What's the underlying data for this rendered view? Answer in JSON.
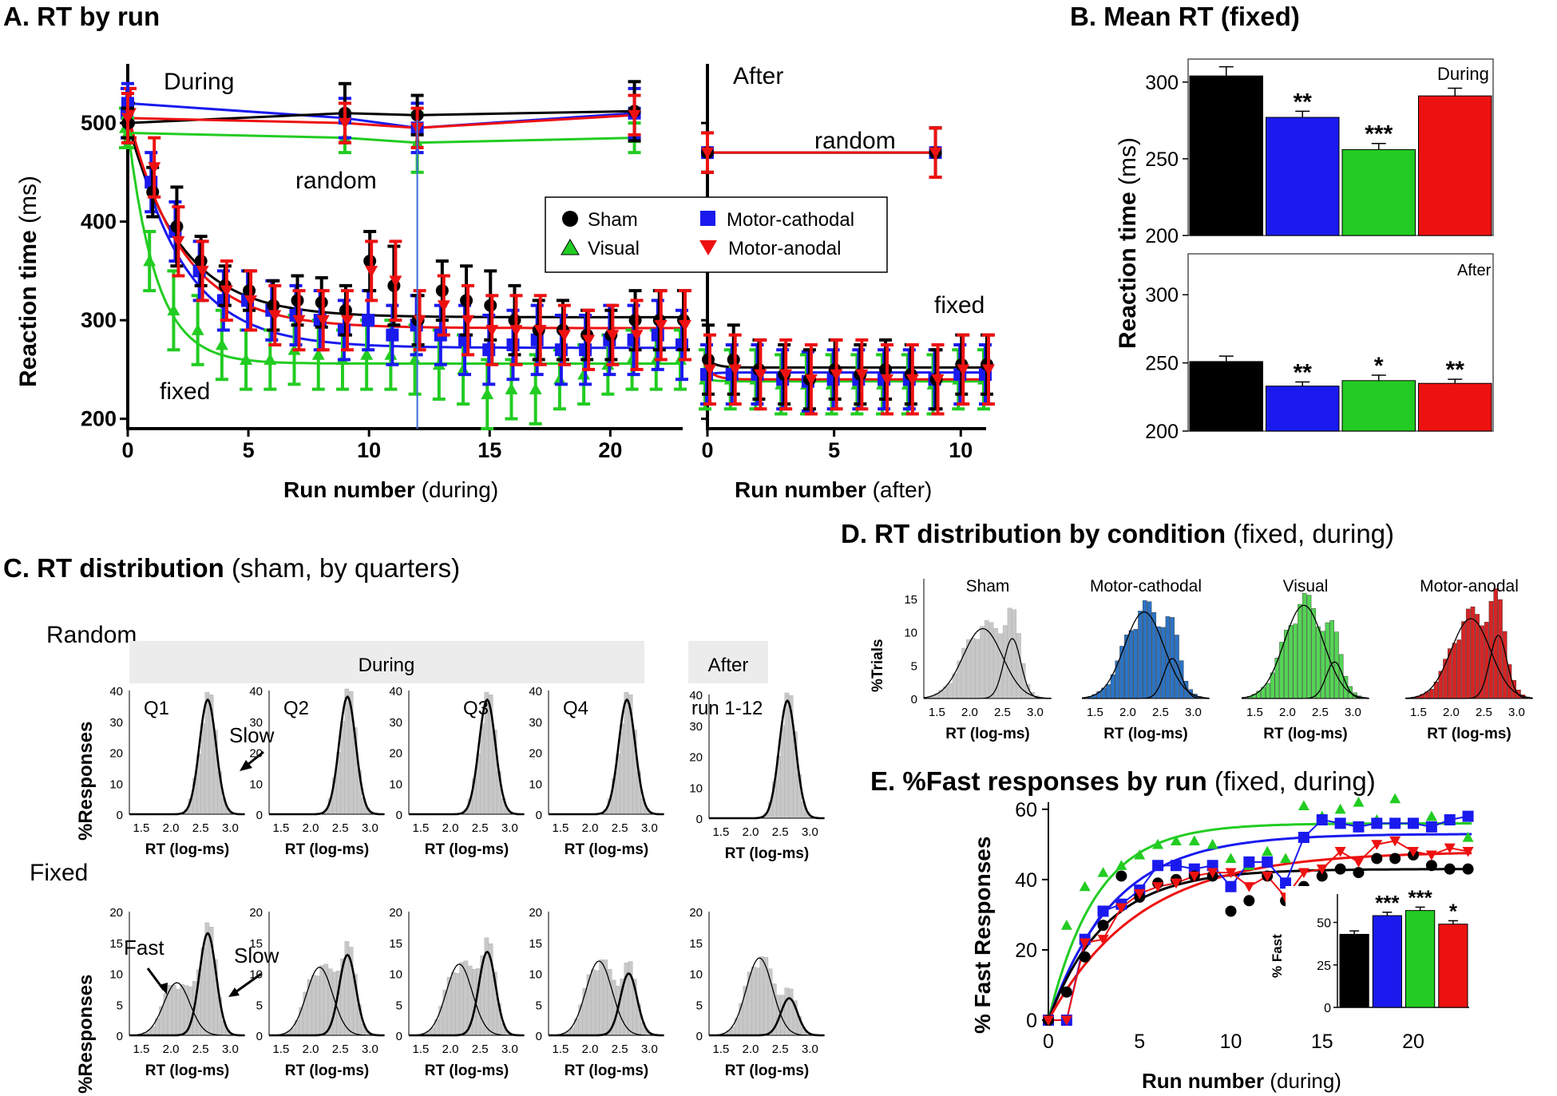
{
  "colors": {
    "sham": "#000000",
    "visual": "#22cc22",
    "motor_cathodal": "#1a1aee",
    "motor_anodal": "#ee1111",
    "hist_gray": "#c8c8c8",
    "hist_blue": "#2b73c4",
    "hist_green": "#55d455",
    "hist_red": "#d62424"
  },
  "panelA": {
    "title": "A. RT by run",
    "ylabel": "Reaction time",
    "yunit": "(ms)",
    "xlabel_during": "Run number",
    "xlabel_during_sub": "(during)",
    "xlabel_after": "Run number",
    "xlabel_after_sub": "(after)",
    "label_during": "During",
    "label_after": "After",
    "label_random": "random",
    "label_fixed": "fixed",
    "legend": {
      "sham": "Sham",
      "visual": "Visual",
      "cathodal": "Motor-cathodal",
      "anodal": "Motor-anodal"
    }
  },
  "panelB": {
    "title": "B. Mean RT (fixed)",
    "ylabel": "Reaction time",
    "yunit": "(ms)",
    "label_during": "During",
    "label_after": "After"
  },
  "panelC": {
    "title": "C. RT distribution",
    "title_sub": "(sham, by quarters)",
    "row_random": "Random",
    "row_fixed": "Fixed",
    "header_during": "During",
    "header_after": "After",
    "ylabel": "%Responses",
    "xlabel": "RT (log-ms)",
    "quarters": [
      "Q1",
      "Q2",
      "Q3",
      "Q4",
      "run 1-12"
    ],
    "label_slow": "Slow",
    "label_fast": "Fast"
  },
  "panelD": {
    "title": "D. RT distribution by condition",
    "title_sub": "(fixed, during)",
    "ylabel": "%Trials",
    "xlabel": "RT (log-ms)",
    "conditions": [
      "Sham",
      "Motor-cathodal",
      "Visual",
      "Motor-anodal"
    ]
  },
  "panelE": {
    "title": "E. %Fast responses by run",
    "title_sub": "(fixed, during)",
    "ylabel": "% Fast Responses",
    "xlabel": "Run number",
    "xlabel_sub": "(during)",
    "inset_ylabel": "% Fast"
  },
  "chart_data": [
    {
      "id": "A_during",
      "type": "line",
      "title": "A. RT by run",
      "xlabel": "Run number (during)",
      "ylabel": "Reaction time (ms)",
      "xlim": [
        0,
        23
      ],
      "ylim": [
        190,
        560
      ],
      "xticks": [
        0,
        5,
        10,
        15,
        20
      ],
      "yticks": [
        200,
        300,
        400,
        500
      ],
      "random_x": [
        0,
        9,
        12,
        21
      ],
      "random_series": [
        {
          "name": "Sham",
          "values": [
            500,
            510,
            508,
            512
          ],
          "err": [
            15,
            30,
            20,
            30
          ]
        },
        {
          "name": "Motor-cathodal",
          "values": [
            520,
            505,
            495,
            510
          ],
          "err": [
            20,
            20,
            25,
            25
          ]
        },
        {
          "name": "Visual",
          "values": [
            490,
            485,
            480,
            485
          ],
          "err": [
            15,
            15,
            30,
            15
          ]
        },
        {
          "name": "Motor-anodal",
          "values": [
            505,
            500,
            495,
            508
          ],
          "err": [
            25,
            20,
            20,
            20
          ]
        }
      ],
      "fixed_x": [
        0,
        1,
        2,
        3,
        4,
        5,
        6,
        7,
        8,
        9,
        10,
        11,
        12,
        13,
        14,
        15,
        16,
        17,
        18,
        19,
        20,
        21,
        22,
        23
      ],
      "fixed_series": [
        {
          "name": "Sham",
          "values": [
            500,
            430,
            395,
            360,
            335,
            330,
            315,
            320,
            318,
            310,
            360,
            335,
            300,
            330,
            320,
            315,
            300,
            290,
            290,
            285,
            285,
            300,
            300,
            300
          ],
          "err": [
            20,
            25,
            40,
            25,
            20,
            20,
            25,
            25,
            25,
            25,
            30,
            40,
            25,
            30,
            35,
            35,
            35,
            30,
            30,
            25,
            25,
            30,
            30,
            30
          ]
        },
        {
          "name": "Motor-cathodal",
          "values": [
            510,
            440,
            390,
            350,
            320,
            320,
            310,
            305,
            300,
            290,
            300,
            285,
            295,
            285,
            280,
            270,
            275,
            280,
            270,
            270,
            280,
            280,
            285,
            275
          ],
          "err": [
            25,
            30,
            30,
            30,
            30,
            30,
            30,
            30,
            30,
            30,
            30,
            30,
            30,
            30,
            35,
            35,
            35,
            35,
            35,
            35,
            35,
            35,
            35,
            35
          ]
        },
        {
          "name": "Visual",
          "values": [
            495,
            360,
            310,
            290,
            275,
            260,
            260,
            270,
            265,
            260,
            265,
            265,
            260,
            255,
            250,
            225,
            230,
            230,
            240,
            245,
            255,
            260,
            260,
            260
          ],
          "err": [
            20,
            30,
            40,
            35,
            35,
            30,
            30,
            35,
            35,
            30,
            35,
            35,
            35,
            35,
            35,
            35,
            30,
            35,
            30,
            30,
            30,
            30,
            30,
            30
          ]
        },
        {
          "name": "Motor-anodal",
          "values": [
            510,
            455,
            380,
            350,
            330,
            320,
            305,
            300,
            300,
            300,
            350,
            340,
            300,
            315,
            300,
            290,
            290,
            290,
            285,
            280,
            285,
            285,
            295,
            295
          ],
          "err": [
            25,
            30,
            35,
            30,
            30,
            30,
            30,
            30,
            30,
            30,
            30,
            40,
            30,
            30,
            35,
            35,
            35,
            35,
            30,
            30,
            30,
            35,
            35,
            35
          ]
        }
      ],
      "fit_asymptotes": {
        "Sham": 303,
        "Motor-cathodal": 272,
        "Visual": 256,
        "Motor-anodal": 292
      }
    },
    {
      "id": "A_after",
      "type": "line",
      "xlabel": "Run number (after)",
      "xlim": [
        0,
        11
      ],
      "xticks": [
        0,
        5,
        10
      ],
      "random_x": [
        0,
        9
      ],
      "random_series": [
        {
          "name": "Sham",
          "values": [
            470,
            470
          ],
          "err": [
            20,
            25
          ]
        },
        {
          "name": "Motor-cathodal",
          "values": [
            470,
            470
          ],
          "err": [
            20,
            25
          ]
        },
        {
          "name": "Visual",
          "values": [
            470,
            470
          ],
          "err": [
            20,
            25
          ]
        },
        {
          "name": "Motor-anodal",
          "values": [
            470,
            470
          ],
          "err": [
            20,
            25
          ]
        }
      ],
      "fixed_x": [
        0,
        1,
        2,
        3,
        4,
        5,
        6,
        7,
        8,
        9,
        10,
        11
      ],
      "fixed_series": [
        {
          "name": "Sham",
          "values": [
            260,
            260,
            250,
            245,
            240,
            250,
            245,
            250,
            245,
            240,
            255,
            255
          ],
          "err": [
            35,
            35,
            30,
            30,
            30,
            30,
            30,
            30,
            30,
            30,
            30,
            30
          ]
        },
        {
          "name": "Motor-cathodal",
          "values": [
            245,
            245,
            245,
            240,
            238,
            240,
            240,
            240,
            240,
            240,
            245,
            245
          ],
          "err": [
            30,
            30,
            30,
            30,
            30,
            30,
            30,
            30,
            30,
            30,
            30,
            30
          ]
        },
        {
          "name": "Visual",
          "values": [
            240,
            240,
            240,
            235,
            235,
            235,
            235,
            235,
            235,
            235,
            240,
            240
          ],
          "err": [
            30,
            30,
            30,
            30,
            30,
            30,
            30,
            30,
            30,
            30,
            30,
            30
          ]
        },
        {
          "name": "Motor-anodal",
          "values": [
            250,
            250,
            245,
            245,
            240,
            245,
            245,
            240,
            240,
            240,
            250,
            250
          ],
          "err": [
            35,
            35,
            35,
            35,
            35,
            35,
            35,
            35,
            35,
            35,
            35,
            35
          ]
        }
      ],
      "fit_asymptotes": {
        "Sham": 252,
        "Motor-cathodal": 247,
        "Visual": 238,
        "Motor-anodal": 240
      },
      "axis_ticks_left": [
        300,
        200
      ]
    },
    {
      "id": "B_during",
      "type": "bar",
      "title": "B. Mean RT (fixed)",
      "subtitle": "During",
      "categories": [
        "Sham",
        "Motor-cathodal",
        "Visual",
        "Motor-anodal"
      ],
      "values": [
        304,
        277,
        256,
        291
      ],
      "err": [
        6,
        4,
        4,
        5
      ],
      "significance": [
        "",
        "**",
        "***",
        ""
      ],
      "ylim": [
        200,
        315
      ],
      "yticks": [
        200,
        250,
        300
      ]
    },
    {
      "id": "B_after",
      "type": "bar",
      "subtitle": "After",
      "categories": [
        "Sham",
        "Motor-cathodal",
        "Visual",
        "Motor-anodal"
      ],
      "values": [
        251,
        233,
        237,
        235
      ],
      "err": [
        4,
        3,
        4,
        3
      ],
      "significance": [
        "",
        "**",
        "*",
        "**"
      ],
      "ylim": [
        200,
        330
      ],
      "yticks": [
        200,
        250,
        300
      ]
    },
    {
      "id": "C_random",
      "type": "histogram",
      "title": "C. RT distribution (sham, by quarters)",
      "xticks": [
        1.5,
        2.0,
        2.5,
        3.0
      ],
      "yticks": [
        0,
        10,
        20,
        30,
        40
      ],
      "ylim": [
        0,
        40
      ],
      "panels": [
        {
          "label": "Q1",
          "peak": 37,
          "mode": 2.62
        },
        {
          "label": "Q2",
          "peak": 38,
          "mode": 2.62
        },
        {
          "label": "Q3",
          "peak": 37,
          "mode": 2.62
        },
        {
          "label": "Q4",
          "peak": 37,
          "mode": 2.62
        },
        {
          "label": "run 1-12",
          "peak": 38,
          "mode": 2.62
        }
      ]
    },
    {
      "id": "C_fixed",
      "type": "histogram",
      "xticks": [
        1.5,
        2.0,
        2.5,
        3.0
      ],
      "yticks": [
        0,
        5,
        10,
        15,
        20
      ],
      "ylim": [
        0,
        20
      ],
      "panels": [
        {
          "fast_peak": 8.5,
          "fast_mode": 2.1,
          "slow_peak": 16.5,
          "slow_mode": 2.62
        },
        {
          "fast_peak": 11,
          "fast_mode": 2.15,
          "slow_peak": 13,
          "slow_mode": 2.62
        },
        {
          "fast_peak": 11.5,
          "fast_mode": 2.15,
          "slow_peak": 13.5,
          "slow_mode": 2.62
        },
        {
          "fast_peak": 12,
          "fast_mode": 2.15,
          "slow_peak": 10,
          "slow_mode": 2.65
        },
        {
          "fast_peak": 12.5,
          "fast_mode": 2.15,
          "slow_peak": 6,
          "slow_mode": 2.65
        }
      ]
    },
    {
      "id": "D",
      "type": "histogram",
      "title": "D. RT distribution by condition (fixed, during)",
      "xticks": [
        1.5,
        2.0,
        2.5,
        3.0
      ],
      "yticks": [
        0,
        5,
        10,
        15
      ],
      "ylim": [
        0,
        18
      ],
      "panels": [
        {
          "label": "Sham",
          "wide_peak": 10.5,
          "wide_mode": 2.2,
          "narrow_peak": 9,
          "narrow_mode": 2.65
        },
        {
          "label": "Motor-cathodal",
          "wide_peak": 13,
          "wide_mode": 2.25,
          "narrow_peak": 6,
          "narrow_mode": 2.68
        },
        {
          "label": "Visual",
          "wide_peak": 14,
          "wide_mode": 2.25,
          "narrow_peak": 5.5,
          "narrow_mode": 2.72
        },
        {
          "label": "Motor-anodal",
          "wide_peak": 12,
          "wide_mode": 2.3,
          "narrow_peak": 9.5,
          "narrow_mode": 2.72
        }
      ]
    },
    {
      "id": "E",
      "type": "scatter",
      "title": "E. %Fast responses by run (fixed, during)",
      "xlabel": "Run number (during)",
      "ylabel": "% Fast Responses",
      "xlim": [
        0,
        23.5
      ],
      "ylim": [
        0,
        62
      ],
      "xticks": [
        0,
        5,
        10,
        15,
        20
      ],
      "yticks": [
        0,
        20,
        40,
        60
      ],
      "x": [
        0,
        1,
        2,
        3,
        4,
        5,
        6,
        7,
        8,
        9,
        10,
        11,
        12,
        13,
        14,
        15,
        16,
        17,
        18,
        19,
        20,
        21,
        22,
        23
      ],
      "series": [
        {
          "name": "Sham",
          "values": [
            0,
            8,
            18,
            27,
            41,
            35,
            39,
            40,
            41,
            41,
            31,
            34,
            41,
            34,
            38,
            41,
            43,
            42,
            46,
            46,
            47,
            44,
            43,
            43
          ],
          "fit_asymptote": 43
        },
        {
          "name": "Motor-cathodal",
          "values": [
            0,
            0,
            23,
            31,
            33,
            37,
            44,
            44,
            43,
            44,
            38,
            45,
            45,
            39,
            52,
            57,
            56,
            55,
            56,
            56,
            56,
            55,
            57,
            58
          ],
          "fit_asymptote": 53
        },
        {
          "name": "Visual",
          "values": [
            0,
            27,
            38,
            42,
            44,
            47,
            50,
            51,
            51,
            50,
            46,
            44,
            48,
            46,
            61,
            58,
            60,
            62,
            57,
            63,
            56,
            58,
            57,
            52
          ],
          "fit_asymptote": 56
        },
        {
          "name": "Motor-anodal",
          "values": [
            0,
            0,
            22,
            23,
            32,
            36,
            38,
            39,
            41,
            42,
            42,
            38,
            41,
            35,
            42,
            43,
            48,
            45,
            50,
            51,
            48,
            47,
            49,
            48
          ],
          "fit_asymptote": 48
        }
      ],
      "inset": {
        "type": "bar",
        "ylabel": "% Fast",
        "categories": [
          "Sham",
          "Motor-cathodal",
          "Visual",
          "Motor-anodal"
        ],
        "values": [
          43,
          54,
          57,
          49
        ],
        "err": [
          2,
          2,
          2,
          2
        ],
        "significance": [
          "",
          "***",
          "***",
          "*"
        ],
        "ylim": [
          0,
          62
        ],
        "yticks": [
          0,
          25,
          50
        ]
      }
    }
  ]
}
